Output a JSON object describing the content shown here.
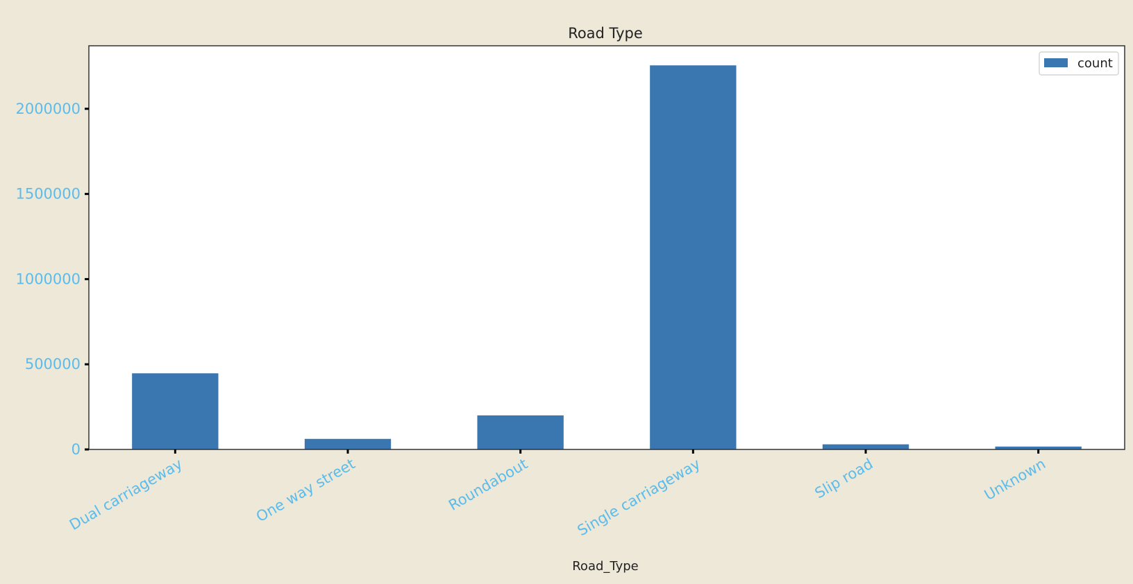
{
  "chart_data": {
    "type": "bar",
    "title": "Road Type",
    "xlabel": "Road_Type",
    "ylabel": "",
    "categories": [
      "Dual carriageway",
      "One way street",
      "Roundabout",
      "Single carriageway",
      "Slip road",
      "Unknown"
    ],
    "series": [
      {
        "name": "count",
        "values": [
          447000,
          62000,
          200000,
          2255000,
          30000,
          17000
        ]
      }
    ],
    "ylim": [
      0,
      2370000
    ],
    "yticks": [
      0,
      500000,
      1000000,
      1500000,
      2000000
    ],
    "ytick_labels": [
      "0",
      "500000",
      "1000000",
      "1500000",
      "2000000"
    ],
    "grid": false,
    "legend": {
      "position": "top-right",
      "entries": [
        "count"
      ]
    },
    "colors": {
      "bar": "#3a76af",
      "tick_label": "#5bbcec",
      "background": "#ede8d8",
      "plot_area": "#ffffff",
      "axis": "#333333",
      "text": "#222222"
    }
  }
}
